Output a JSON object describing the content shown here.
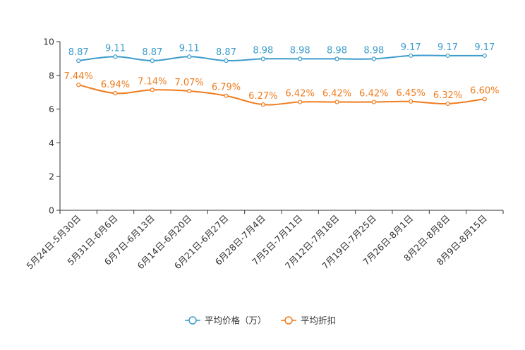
{
  "chart_data": {
    "type": "line",
    "title": "",
    "xlabel": "",
    "ylabel": "",
    "ylim": [
      0,
      10
    ],
    "yticks": [
      0,
      2,
      4,
      6,
      8,
      10
    ],
    "grid": false,
    "legend_position": "bottom",
    "categories": [
      "5月24日-5月30日",
      "5月31日-6月6日",
      "6月7日-6月13日",
      "6月14日-6月20日",
      "6月21日-6月27日",
      "6月28日-7月4日",
      "7月5日-7月11日",
      "7月12日-7月18日",
      "7月19日-7月25日",
      "7月26日-8月1日",
      "8月2日-8月8日",
      "8月9日-8月15日"
    ],
    "series": [
      {
        "name": "平均价格（万）",
        "color": "#3c9ccc",
        "values": [
          8.87,
          9.11,
          8.87,
          9.11,
          8.87,
          8.98,
          8.98,
          8.98,
          8.98,
          9.17,
          9.17,
          9.17
        ],
        "labels": [
          "8.87",
          "9.11",
          "8.87",
          "9.11",
          "8.87",
          "8.98",
          "8.98",
          "8.98",
          "8.98",
          "9.17",
          "9.17",
          "9.17"
        ]
      },
      {
        "name": "平均折扣",
        "color": "#f07c1e",
        "values": [
          7.44,
          6.94,
          7.14,
          7.07,
          6.79,
          6.27,
          6.42,
          6.42,
          6.42,
          6.45,
          6.32,
          6.6
        ],
        "labels": [
          "7.44%",
          "6.94%",
          "7.14%",
          "7.07%",
          "6.79%",
          "6.27%",
          "6.42%",
          "6.42%",
          "6.42%",
          "6.45%",
          "6.32%",
          "6.60%"
        ]
      }
    ]
  }
}
